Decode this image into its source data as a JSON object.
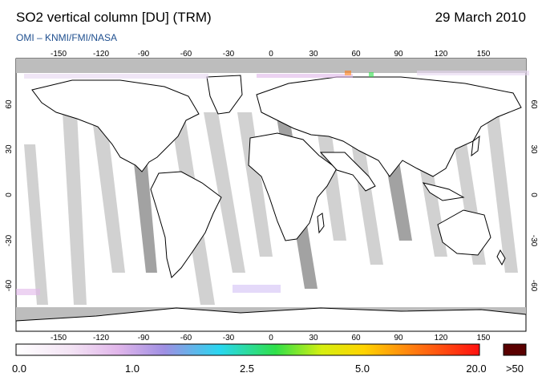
{
  "header": {
    "title": "SO2 vertical column [DU] (TRM)",
    "date": "29 March 2010",
    "credit": "OMI – KNMI/FMI/NASA"
  },
  "map": {
    "lon_ticks": [
      "-150",
      "-120",
      "-90",
      "-60",
      "-30",
      "0",
      "30",
      "60",
      "90",
      "120",
      "150"
    ],
    "lat_ticks": [
      "60",
      "30",
      "0",
      "-30",
      "-60"
    ],
    "colors": {
      "ocean": "#ffffff",
      "land_fill": "#ffffff",
      "coast": "#000000",
      "swath_gap_light": "#cfcfcf",
      "swath_gap_dark": "#9e9e9e",
      "polar_gray": "#bdbdbd"
    }
  },
  "colorbar": {
    "labels": [
      "0.0",
      "1.0",
      "2.5",
      "5.0",
      "20.0",
      ">50"
    ],
    "gradient": [
      "#ffffff",
      "#f3e3f4",
      "#e1b6ea",
      "#9f8fe3",
      "#29d7f0",
      "#2fe04a",
      "#d6ef10",
      "#ffd400",
      "#ff7a10",
      "#ff1010"
    ],
    "overflow_color": "#5a0000"
  }
}
